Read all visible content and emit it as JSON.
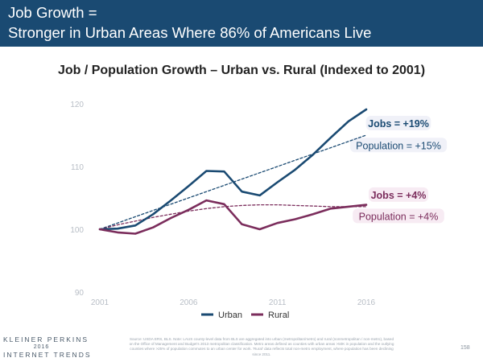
{
  "header": {
    "line1": "Job Growth =",
    "line2": "Stronger in Urban Areas Where 86% of Americans Live"
  },
  "chart_data": {
    "type": "line",
    "title": "Job / Population Growth – Urban vs. Rural (Indexed to 2001)",
    "xlabel": "",
    "ylabel": "",
    "xlim": [
      2001,
      2016
    ],
    "ylim": [
      90,
      120
    ],
    "xticks": [
      "2001",
      "2006",
      "2011",
      "2016"
    ],
    "yticks": [
      "90",
      "100",
      "110",
      "120"
    ],
    "grid": false,
    "legend_position": "bottom",
    "x": [
      2001,
      2002,
      2003,
      2004,
      2005,
      2006,
      2007,
      2008,
      2009,
      2010,
      2011,
      2012,
      2013,
      2014,
      2015,
      2016
    ],
    "series": [
      {
        "name": "Urban",
        "color": "#1a4a72",
        "style": "solid",
        "values": [
          100,
          100.1,
          100.6,
          102.4,
          104.6,
          106.9,
          109.3,
          109.2,
          106.0,
          105.4,
          107.5,
          109.5,
          111.9,
          114.6,
          117.2,
          119.1
        ]
      },
      {
        "name": "Rural",
        "color": "#7b2d5c",
        "style": "solid",
        "values": [
          100,
          99.5,
          99.3,
          100.3,
          101.8,
          103.1,
          104.6,
          104.0,
          100.8,
          100.0,
          101.0,
          101.6,
          102.4,
          103.3,
          103.6,
          103.9
        ]
      },
      {
        "name": "",
        "color": "#1a4a72",
        "style": "dashed",
        "values": [
          100,
          101.0,
          102.0,
          103.0,
          104.0,
          105.0,
          106.0,
          107.0,
          108.0,
          109.0,
          110.0,
          111.0,
          112.0,
          113.0,
          114.0,
          115.0
        ]
      },
      {
        "name": "",
        "color": "#7b2d5c",
        "style": "dashed",
        "values": [
          100,
          100.7,
          101.3,
          101.9,
          102.4,
          102.9,
          103.3,
          103.6,
          103.8,
          103.9,
          103.9,
          103.8,
          103.7,
          103.6,
          103.6,
          103.6
        ]
      }
    ],
    "annotations": [
      {
        "text": "Jobs = +19%",
        "color": "#1a4a72",
        "bold": true,
        "highlight": "#eef0f7",
        "x": 2016,
        "y": 116.8
      },
      {
        "text": "Population = +15%",
        "color": "#1a4a72",
        "bold": false,
        "highlight": "#eef0f7",
        "x": 2016,
        "y": 113.3
      },
      {
        "text": "Jobs = +4%",
        "color": "#7b2d5c",
        "bold": true,
        "highlight": "#f6e9f2",
        "x": 2016,
        "y": 105.4
      },
      {
        "text": "Population = +4%",
        "color": "#7b2d5c",
        "bold": false,
        "highlight": "#f6e9f2",
        "x": 2016,
        "y": 102.0
      }
    ]
  },
  "footer": {
    "logo_line1": "KLEINER PERKINS",
    "logo_line2": "2016",
    "logo_line3": "INTERNET TRENDS",
    "source": "Source: USDA ERS, BLS. Note: LAUS county-level data from BLS are aggregated into urban (metropolitan/metro) and rural (nonmetropolitan / non-metro), based on the Office of Management and Budget's 2013 metropolitan classification. Metro areas defined as counties with urban areas >50K in population and the outlying counties where >25% of population commutes to an urban center for work. 'Rural' data reflects total non-metro employment, where population has been declining since 2011.",
    "page_number": "158"
  }
}
